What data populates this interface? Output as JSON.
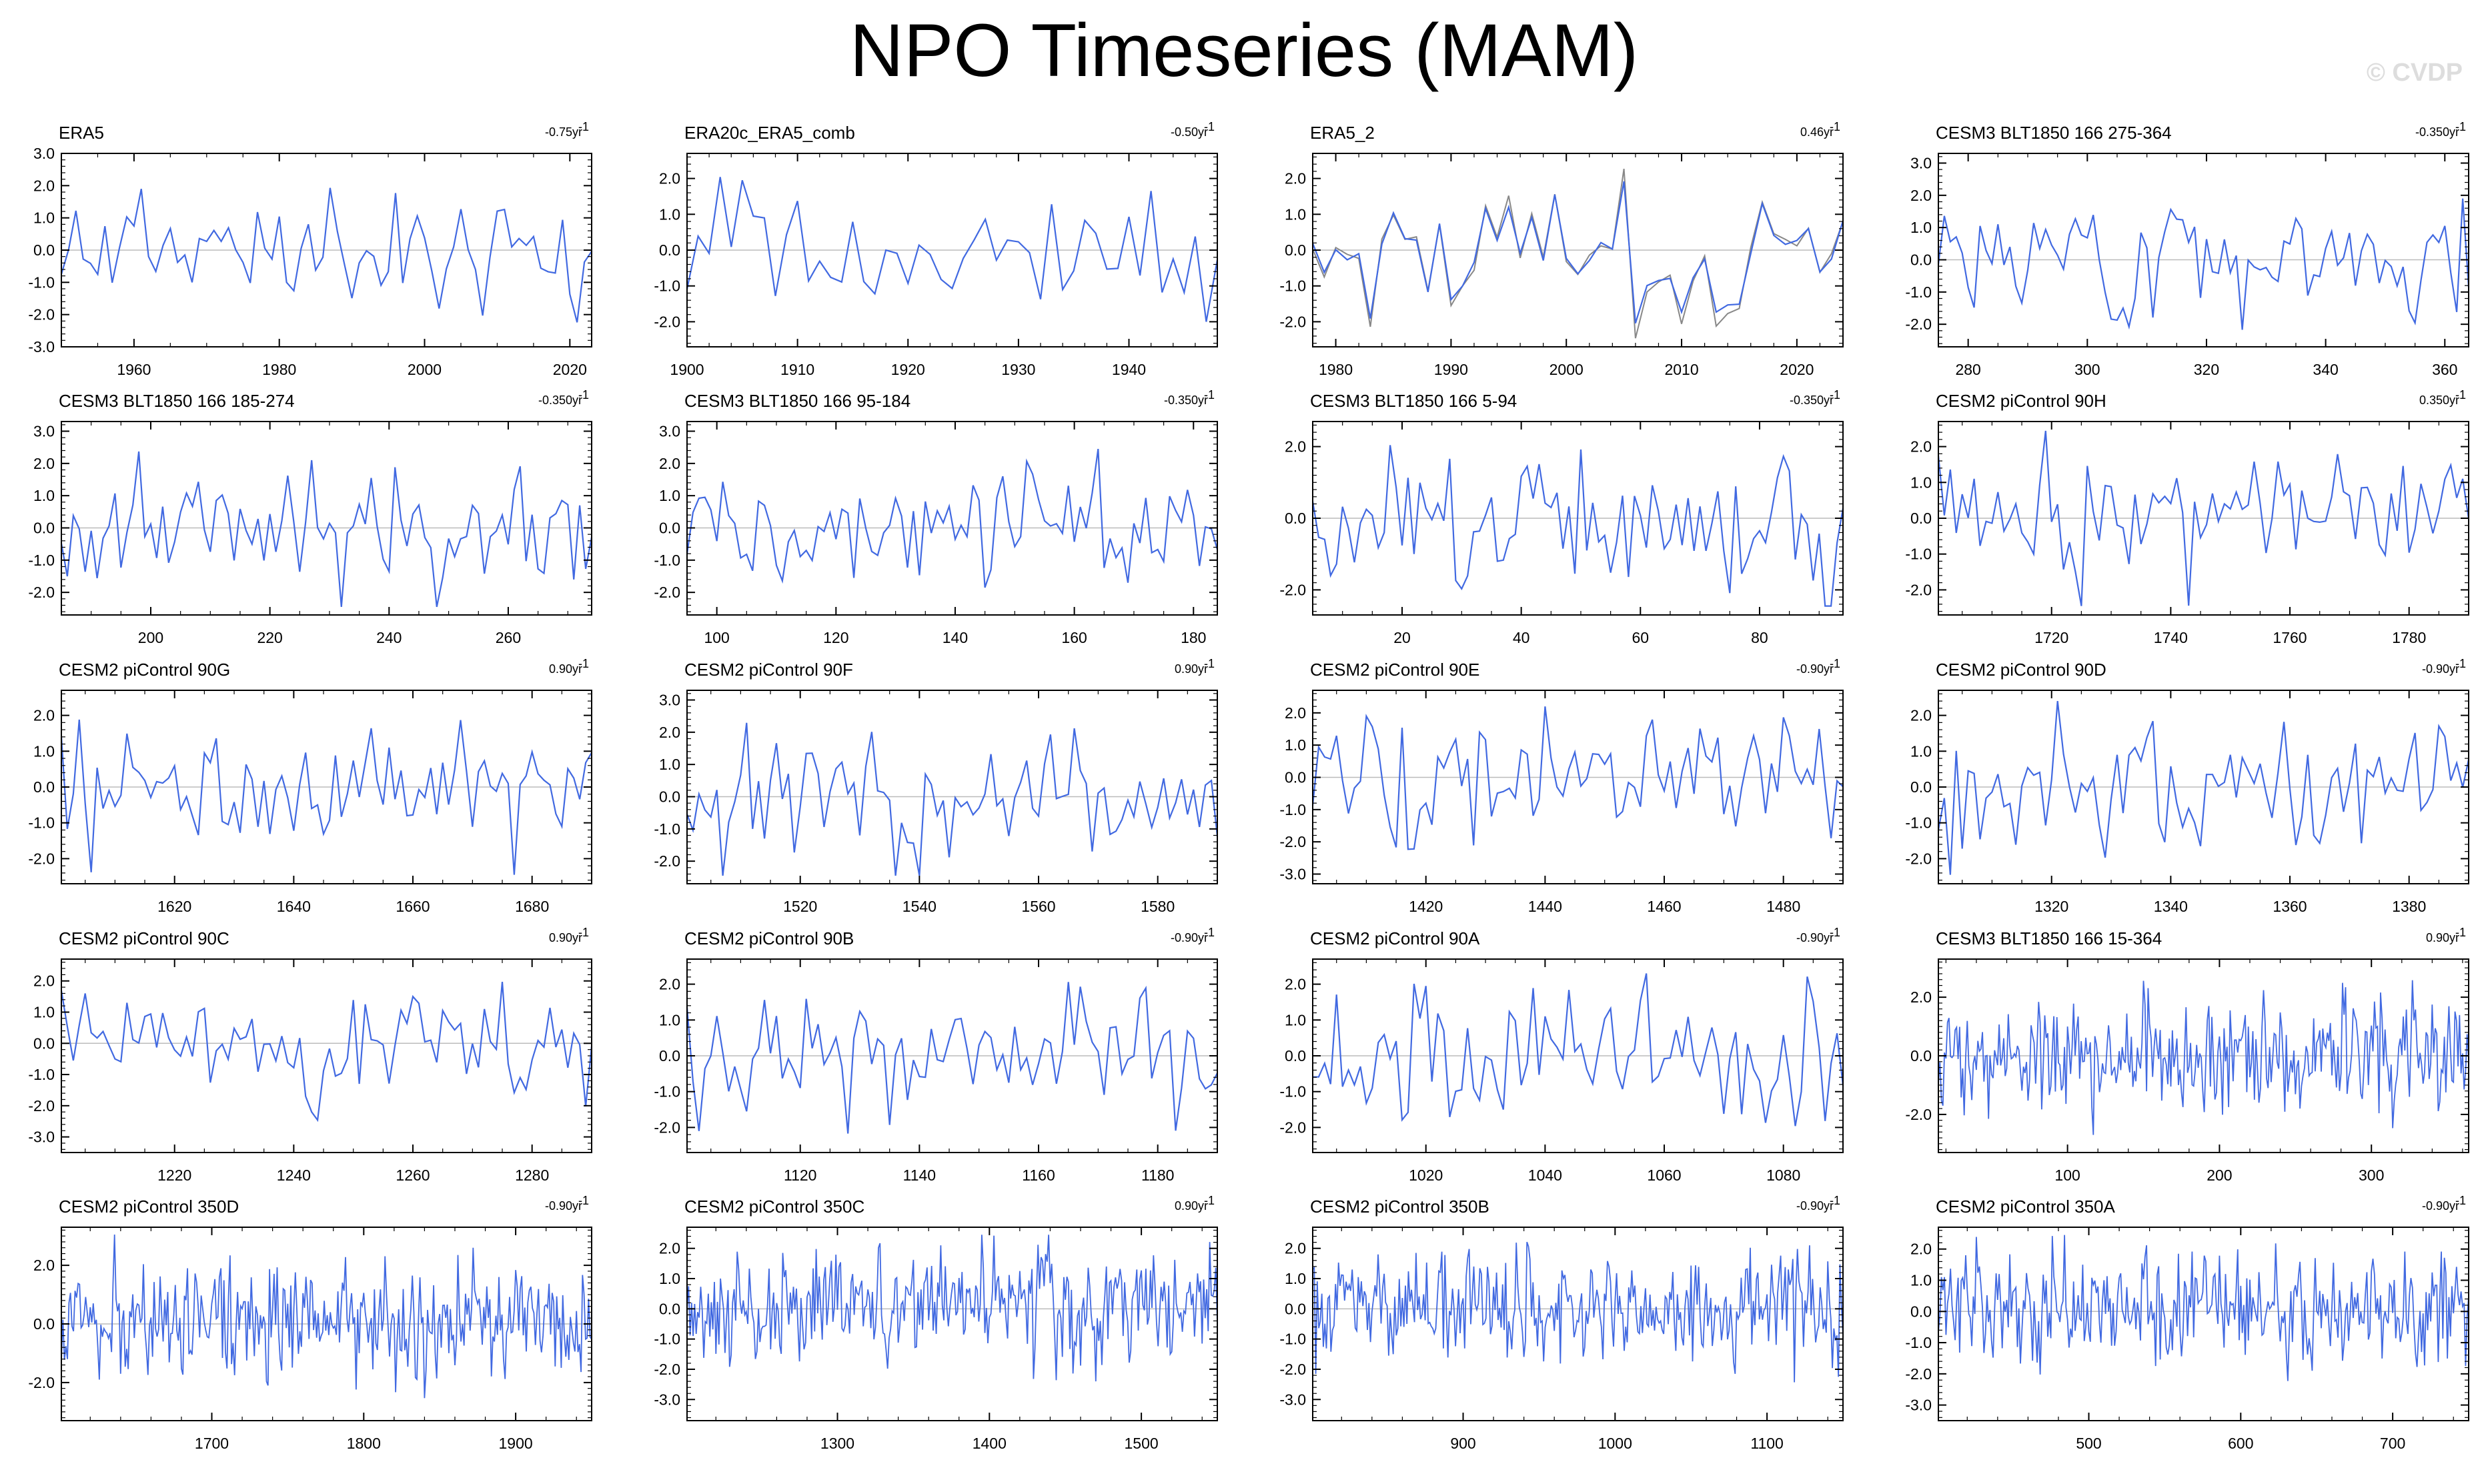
{
  "title": "NPO Timeseries (MAM)",
  "watermark": "© CVDP",
  "colors": {
    "primary": "#4169e1",
    "secondary": "#888888",
    "zero": "#bbbbbb",
    "axis": "#000000"
  },
  "chart_data": [
    {
      "type": "line",
      "title": "ERA5",
      "trend": "-0.75yr",
      "xlim": [
        1950,
        2023
      ],
      "ylim": [
        -3,
        3
      ],
      "yticks": [
        -3,
        -2,
        -1,
        0,
        1,
        2,
        3
      ],
      "xticks": [
        1960,
        1980,
        2000,
        2020
      ],
      "n": 74,
      "seed": 11
    },
    {
      "type": "line",
      "title": "ERA20c_ERA5_comb",
      "trend": "-0.50yr",
      "xlim": [
        1900,
        1948
      ],
      "ylim": [
        -2.7,
        2.7
      ],
      "yticks": [
        -2,
        -1,
        0,
        1,
        2
      ],
      "xticks": [
        1900,
        1910,
        1920,
        1930,
        1940
      ],
      "n": 49,
      "seed": 12
    },
    {
      "type": "line",
      "title": "ERA5_2",
      "trend": "0.46yr",
      "xlim": [
        1978,
        2024
      ],
      "ylim": [
        -2.7,
        2.7
      ],
      "yticks": [
        -2,
        -1,
        0,
        1,
        2
      ],
      "xticks": [
        1980,
        1990,
        2000,
        2010,
        2020
      ],
      "n": 47,
      "seed": 13,
      "second": true
    },
    {
      "type": "line",
      "title": "CESM3 BLT1850 166 275-364",
      "trend": "-0.350yr",
      "xlim": [
        275,
        364
      ],
      "ylim": [
        -2.7,
        3.3
      ],
      "yticks": [
        -2,
        -1,
        0,
        1,
        2,
        3
      ],
      "xticks": [
        280,
        300,
        320,
        340,
        360
      ],
      "n": 90,
      "seed": 14
    },
    {
      "type": "line",
      "title": "CESM3 BLT1850 166 185-274",
      "trend": "-0.350yr",
      "xlim": [
        185,
        274
      ],
      "ylim": [
        -2.7,
        3.3
      ],
      "yticks": [
        -2,
        -1,
        0,
        1,
        2,
        3
      ],
      "xticks": [
        200,
        220,
        240,
        260
      ],
      "n": 90,
      "seed": 15
    },
    {
      "type": "line",
      "title": "CESM3 BLT1850 166 95-184",
      "trend": "-0.350yr",
      "xlim": [
        95,
        184
      ],
      "ylim": [
        -2.7,
        3.3
      ],
      "yticks": [
        -2,
        -1,
        0,
        1,
        2,
        3
      ],
      "xticks": [
        100,
        120,
        140,
        160,
        180
      ],
      "n": 90,
      "seed": 16
    },
    {
      "type": "line",
      "title": "CESM3 BLT1850 166 5-94",
      "trend": "-0.350yr",
      "xlim": [
        5,
        94
      ],
      "ylim": [
        -2.7,
        2.7
      ],
      "yticks": [
        -2,
        0,
        2
      ],
      "xticks": [
        20,
        40,
        60,
        80
      ],
      "n": 90,
      "seed": 17
    },
    {
      "type": "line",
      "title": "CESM2 piControl 90H",
      "trend": "0.350yr",
      "xlim": [
        1701,
        1790
      ],
      "ylim": [
        -2.7,
        2.7
      ],
      "yticks": [
        -2,
        -1,
        0,
        1,
        2
      ],
      "xticks": [
        1720,
        1740,
        1760,
        1780
      ],
      "n": 90,
      "seed": 18
    },
    {
      "type": "line",
      "title": "CESM2 piControl 90G",
      "trend": "0.90yr",
      "xlim": [
        1601,
        1690
      ],
      "ylim": [
        -2.7,
        2.7
      ],
      "yticks": [
        -2,
        -1,
        0,
        1,
        2
      ],
      "xticks": [
        1620,
        1640,
        1660,
        1680
      ],
      "n": 90,
      "seed": 19
    },
    {
      "type": "line",
      "title": "CESM2 piControl 90F",
      "trend": "0.90yr",
      "xlim": [
        1501,
        1590
      ],
      "ylim": [
        -2.7,
        3.3
      ],
      "yticks": [
        -2,
        -1,
        0,
        1,
        2,
        3
      ],
      "xticks": [
        1520,
        1540,
        1560,
        1580
      ],
      "n": 90,
      "seed": 20
    },
    {
      "type": "line",
      "title": "CESM2 piControl 90E",
      "trend": "-0.90yr",
      "xlim": [
        1401,
        1490
      ],
      "ylim": [
        -3.3,
        2.7
      ],
      "yticks": [
        -3,
        -2,
        -1,
        0,
        1,
        2
      ],
      "xticks": [
        1420,
        1440,
        1460,
        1480
      ],
      "n": 90,
      "seed": 21
    },
    {
      "type": "line",
      "title": "CESM2 piControl 90D",
      "trend": "-0.90yr",
      "xlim": [
        1301,
        1390
      ],
      "ylim": [
        -2.7,
        2.7
      ],
      "yticks": [
        -2,
        -1,
        0,
        1,
        2
      ],
      "xticks": [
        1320,
        1340,
        1360,
        1380
      ],
      "n": 90,
      "seed": 22
    },
    {
      "type": "line",
      "title": "CESM2 piControl 90C",
      "trend": "0.90yr",
      "xlim": [
        1201,
        1290
      ],
      "ylim": [
        -3.5,
        2.7
      ],
      "yticks": [
        -3,
        -2,
        -1,
        0,
        1,
        2
      ],
      "xticks": [
        1220,
        1240,
        1260,
        1280
      ],
      "n": 90,
      "seed": 23
    },
    {
      "type": "line",
      "title": "CESM2 piControl 90B",
      "trend": "-0.90yr",
      "xlim": [
        1101,
        1190
      ],
      "ylim": [
        -2.7,
        2.7
      ],
      "yticks": [
        -2,
        -1,
        0,
        1,
        2
      ],
      "xticks": [
        1120,
        1140,
        1160,
        1180
      ],
      "n": 90,
      "seed": 24
    },
    {
      "type": "line",
      "title": "CESM2 piControl 90A",
      "trend": "-0.90yr",
      "xlim": [
        1001,
        1090
      ],
      "ylim": [
        -2.7,
        2.7
      ],
      "yticks": [
        -2,
        -1,
        0,
        1,
        2
      ],
      "xticks": [
        1020,
        1040,
        1060,
        1080
      ],
      "n": 90,
      "seed": 25
    },
    {
      "type": "line",
      "title": "CESM3 BLT1850 166 15-364",
      "trend": "0.90yr",
      "xlim": [
        15,
        364
      ],
      "ylim": [
        -3.3,
        3.3
      ],
      "yticks": [
        -2,
        0,
        2
      ],
      "xticks": [
        100,
        200,
        300
      ],
      "n": 350,
      "seed": 26
    },
    {
      "type": "line",
      "title": "CESM2 piControl 350D",
      "trend": "-0.90yr",
      "xlim": [
        1601,
        1950
      ],
      "ylim": [
        -3.3,
        3.3
      ],
      "yticks": [
        -2,
        0,
        2
      ],
      "xticks": [
        1700,
        1800,
        1900
      ],
      "n": 350,
      "seed": 27
    },
    {
      "type": "line",
      "title": "CESM2 piControl 350C",
      "trend": "0.90yr",
      "xlim": [
        1201,
        1550
      ],
      "ylim": [
        -3.7,
        2.7
      ],
      "yticks": [
        -3,
        -2,
        -1,
        0,
        1,
        2
      ],
      "xticks": [
        1300,
        1400,
        1500
      ],
      "n": 350,
      "seed": 28
    },
    {
      "type": "line",
      "title": "CESM2 piControl 350B",
      "trend": "-0.90yr",
      "xlim": [
        801,
        1150
      ],
      "ylim": [
        -3.7,
        2.7
      ],
      "yticks": [
        -3,
        -2,
        -1,
        0,
        1,
        2
      ],
      "xticks": [
        900,
        1000,
        1100
      ],
      "n": 350,
      "seed": 29
    },
    {
      "type": "line",
      "title": "CESM2 piControl 350A",
      "trend": "-0.90yr",
      "xlim": [
        401,
        750
      ],
      "ylim": [
        -3.5,
        2.7
      ],
      "yticks": [
        -3,
        -2,
        -1,
        0,
        1,
        2
      ],
      "xticks": [
        500,
        600,
        700
      ],
      "n": 350,
      "seed": 30
    }
  ]
}
